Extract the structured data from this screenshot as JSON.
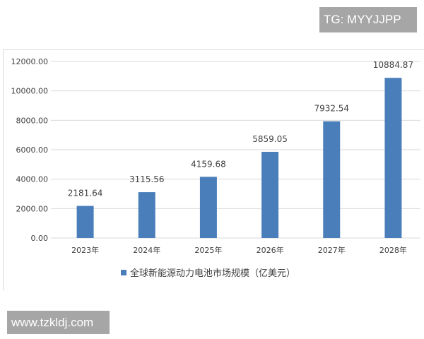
{
  "watermarks": {
    "top_right": "TG: MYYJJPP",
    "bottom_left": "www.tzkldj.com"
  },
  "chart_data": {
    "type": "bar",
    "categories": [
      "2023年",
      "2024年",
      "2025年",
      "2026年",
      "2027年",
      "2028年"
    ],
    "series": [
      {
        "name": "全球新能源动力电池市场规模（亿美元）",
        "values": [
          2181.64,
          3115.56,
          4159.68,
          5859.05,
          7932.54,
          10884.87
        ]
      }
    ],
    "data_labels": [
      "2181.64",
      "3115.56",
      "4159.68",
      "5859.05",
      "7932.54",
      "10884.87"
    ],
    "yticks": [
      "0.00",
      "2000.00",
      "4000.00",
      "6000.00",
      "8000.00",
      "10000.00",
      "12000.00"
    ],
    "ylim": [
      0,
      12000
    ],
    "grid": true,
    "legend": "bottom",
    "colors": {
      "bar": "#4a7ebb",
      "grid": "#d9d9d9"
    }
  }
}
